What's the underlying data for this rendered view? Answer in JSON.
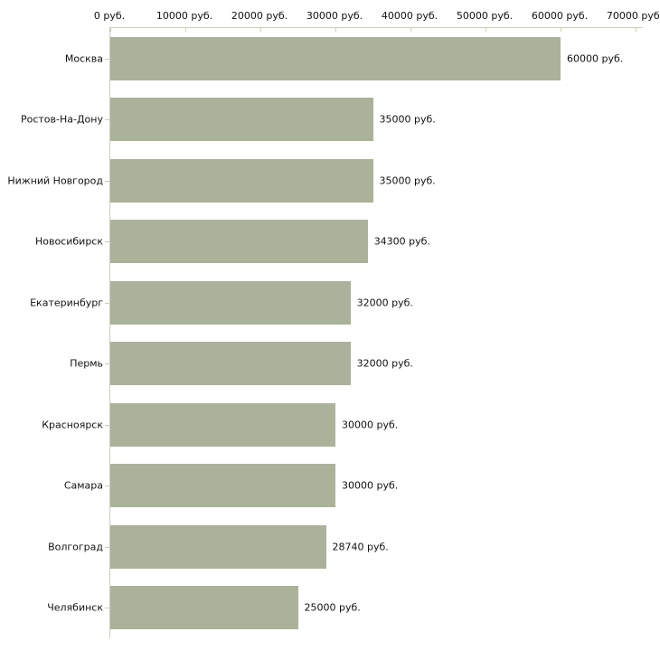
{
  "chart_data": {
    "type": "bar",
    "orientation": "horizontal",
    "title": "",
    "xlabel": "",
    "ylabel": "",
    "categories": [
      "Москва",
      "Ростов-На-Дону",
      "Нижний Новгород",
      "Новосибирск",
      "Екатеринбург",
      "Пермь",
      "Красноярск",
      "Самара",
      "Волгоград",
      "Челябинск"
    ],
    "values": [
      60000,
      35000,
      35000,
      34300,
      32000,
      32000,
      30000,
      30000,
      28740,
      25000
    ],
    "value_labels": [
      "60000 руб.",
      "35000 руб.",
      "35000 руб.",
      "34300 руб.",
      "32000 руб.",
      "32000 руб.",
      "30000 руб.",
      "30000 руб.",
      "28740 руб.",
      "25000 руб."
    ],
    "x_axis": {
      "position": "top",
      "min": 0,
      "max": 70000,
      "ticks": [
        0,
        10000,
        20000,
        30000,
        40000,
        50000,
        60000,
        70000
      ],
      "tick_labels": [
        "0 руб.",
        "10000 руб.",
        "20000 руб.",
        "30000 руб.",
        "40000 руб.",
        "50000 руб.",
        "60000 руб.",
        "70000 руб."
      ]
    },
    "grid": false,
    "legend": false,
    "colors": {
      "bar": "#aab299",
      "axis_line": "#c9cfba",
      "tick_mark": "#cdd0a9",
      "text": "#111111",
      "background": "#ffffff"
    }
  }
}
